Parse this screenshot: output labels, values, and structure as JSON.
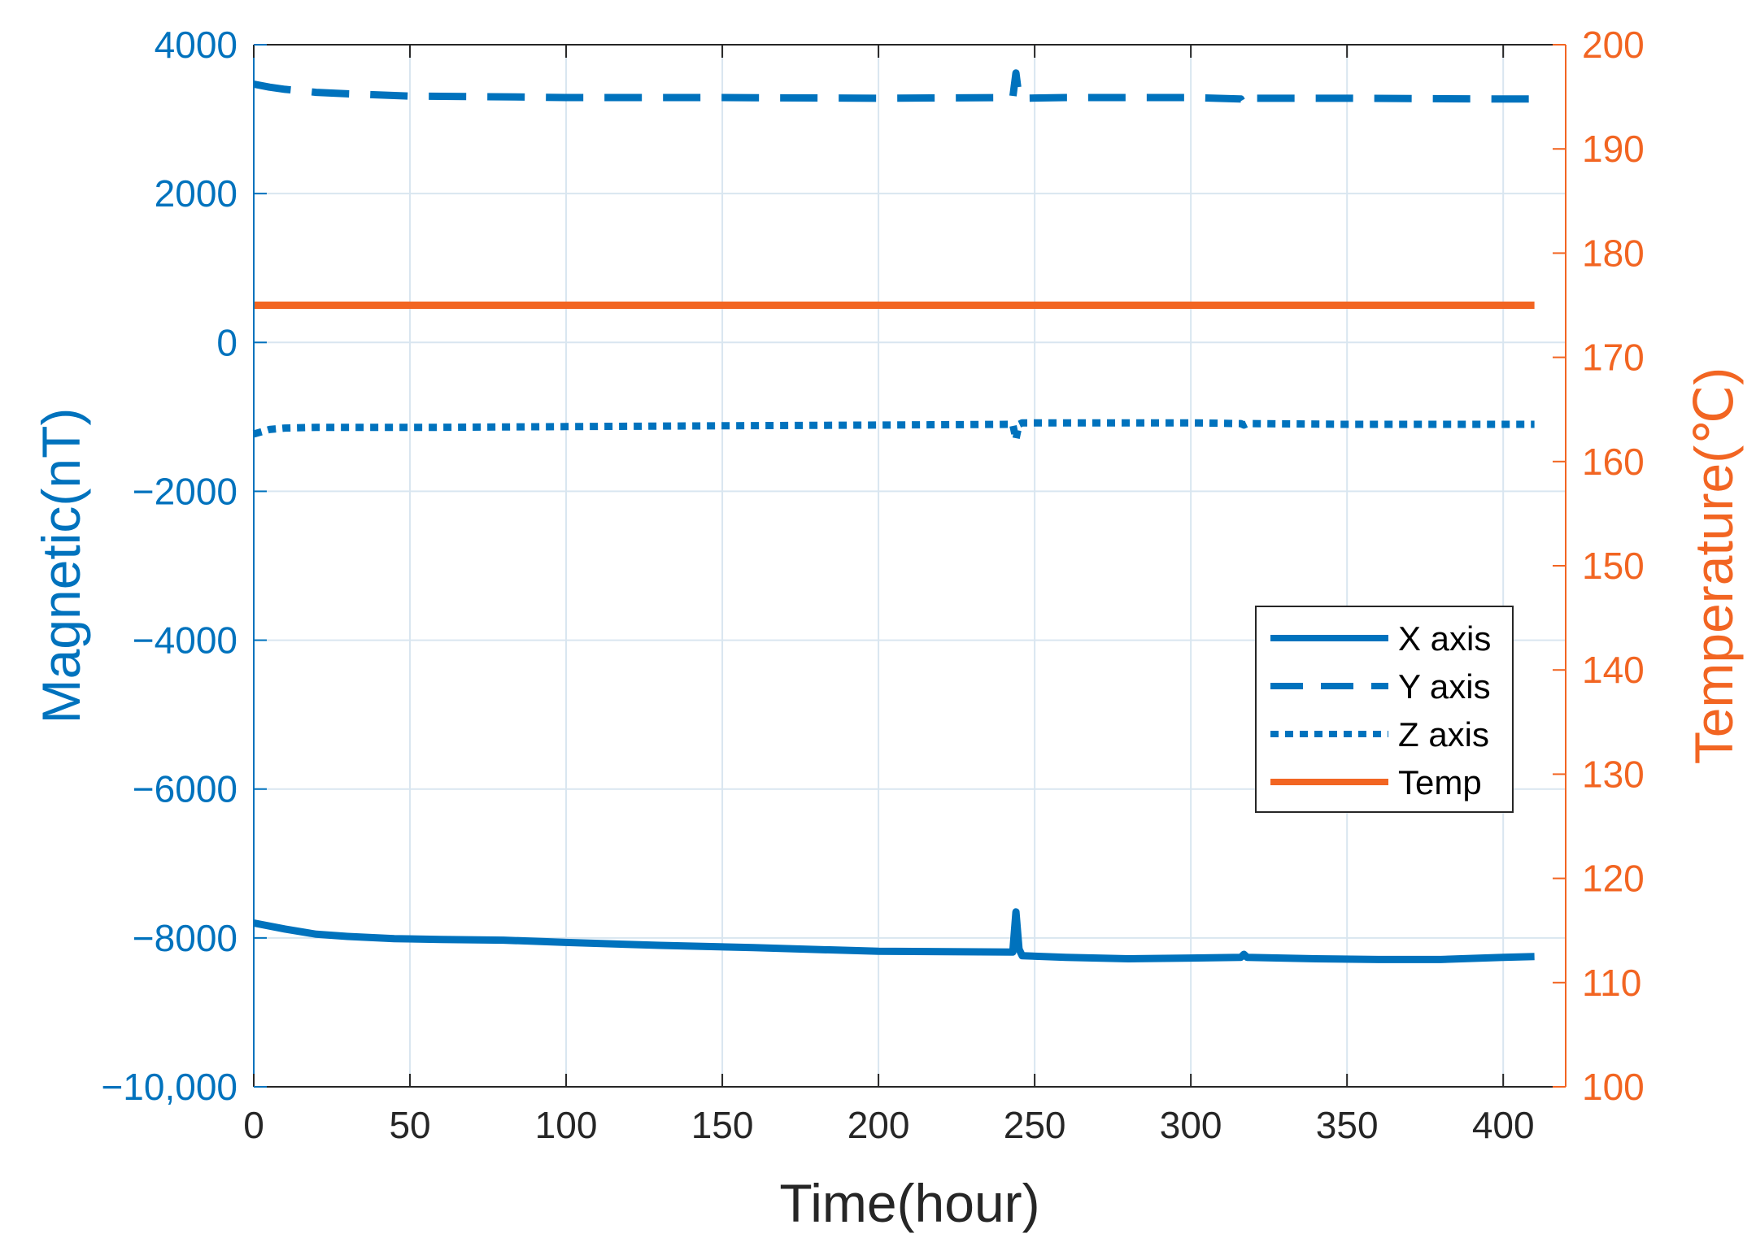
{
  "chart_data": {
    "type": "line",
    "title": "",
    "xlabel": "Time(hour)",
    "ylabel_left": "Magnetic(nT)",
    "ylabel_right": "Temperature(℃)",
    "xlim": [
      0,
      420
    ],
    "ylim_left": [
      -10000,
      4000
    ],
    "ylim_right": [
      100,
      200
    ],
    "xticks": [
      0,
      50,
      100,
      150,
      200,
      250,
      300,
      350,
      400
    ],
    "xtick_labels": [
      "0",
      "50",
      "100",
      "150",
      "200",
      "250",
      "300",
      "350",
      "400"
    ],
    "yticks_left": [
      -10000,
      -8000,
      -6000,
      -4000,
      -2000,
      0,
      2000,
      4000
    ],
    "ytick_labels_left": [
      "−10,000",
      "−8000",
      "−6000",
      "−4000",
      "−2000",
      "0",
      "2000",
      "4000"
    ],
    "yticks_right": [
      100,
      110,
      120,
      130,
      140,
      150,
      160,
      170,
      180,
      190,
      200
    ],
    "ytick_labels_right": [
      "100",
      "110",
      "120",
      "130",
      "140",
      "150",
      "160",
      "170",
      "180",
      "190",
      "200"
    ],
    "grid": true,
    "legend_position": "right-center",
    "colors": {
      "magnetic": "#0072BD",
      "temperature": "#F26522",
      "grid": "#D9E6F0",
      "axis_dark": "#262626"
    },
    "series": [
      {
        "name": "X axis",
        "axis": "left",
        "style": "solid",
        "x": [
          0,
          10,
          20,
          30,
          45,
          60,
          80,
          100,
          130,
          160,
          200,
          243,
          244,
          245,
          246,
          260,
          280,
          300,
          316,
          317,
          318,
          340,
          360,
          380,
          400,
          410
        ],
        "y": [
          -7800,
          -7880,
          -7950,
          -7980,
          -8010,
          -8020,
          -8030,
          -8060,
          -8100,
          -8130,
          -8180,
          -8190,
          -7650,
          -8150,
          -8240,
          -8260,
          -8280,
          -8270,
          -8260,
          -8220,
          -8260,
          -8280,
          -8290,
          -8290,
          -8260,
          -8250
        ]
      },
      {
        "name": "Y axis",
        "axis": "left",
        "style": "dashed",
        "x": [
          0,
          5,
          10,
          20,
          30,
          50,
          80,
          100,
          150,
          200,
          243,
          244,
          245,
          246,
          260,
          300,
          316,
          317,
          318,
          350,
          400,
          410
        ],
        "y": [
          3470,
          3430,
          3400,
          3360,
          3340,
          3310,
          3300,
          3290,
          3290,
          3280,
          3290,
          3620,
          3290,
          3280,
          3290,
          3290,
          3270,
          3200,
          3280,
          3280,
          3270,
          3270
        ]
      },
      {
        "name": "Z axis",
        "axis": "left",
        "style": "dotted",
        "x": [
          0,
          5,
          10,
          20,
          40,
          60,
          100,
          150,
          200,
          243,
          244,
          245,
          246,
          260,
          300,
          316,
          317,
          318,
          350,
          400,
          410
        ],
        "y": [
          -1230,
          -1170,
          -1150,
          -1140,
          -1140,
          -1140,
          -1130,
          -1120,
          -1110,
          -1100,
          -1300,
          -1100,
          -1080,
          -1080,
          -1080,
          -1090,
          -1110,
          -1090,
          -1100,
          -1100,
          -1100
        ]
      },
      {
        "name": "Temp",
        "axis": "right",
        "style": "solid",
        "x": [
          0,
          100,
          200,
          300,
          410
        ],
        "y": [
          175,
          175,
          175,
          175,
          175
        ]
      }
    ]
  }
}
